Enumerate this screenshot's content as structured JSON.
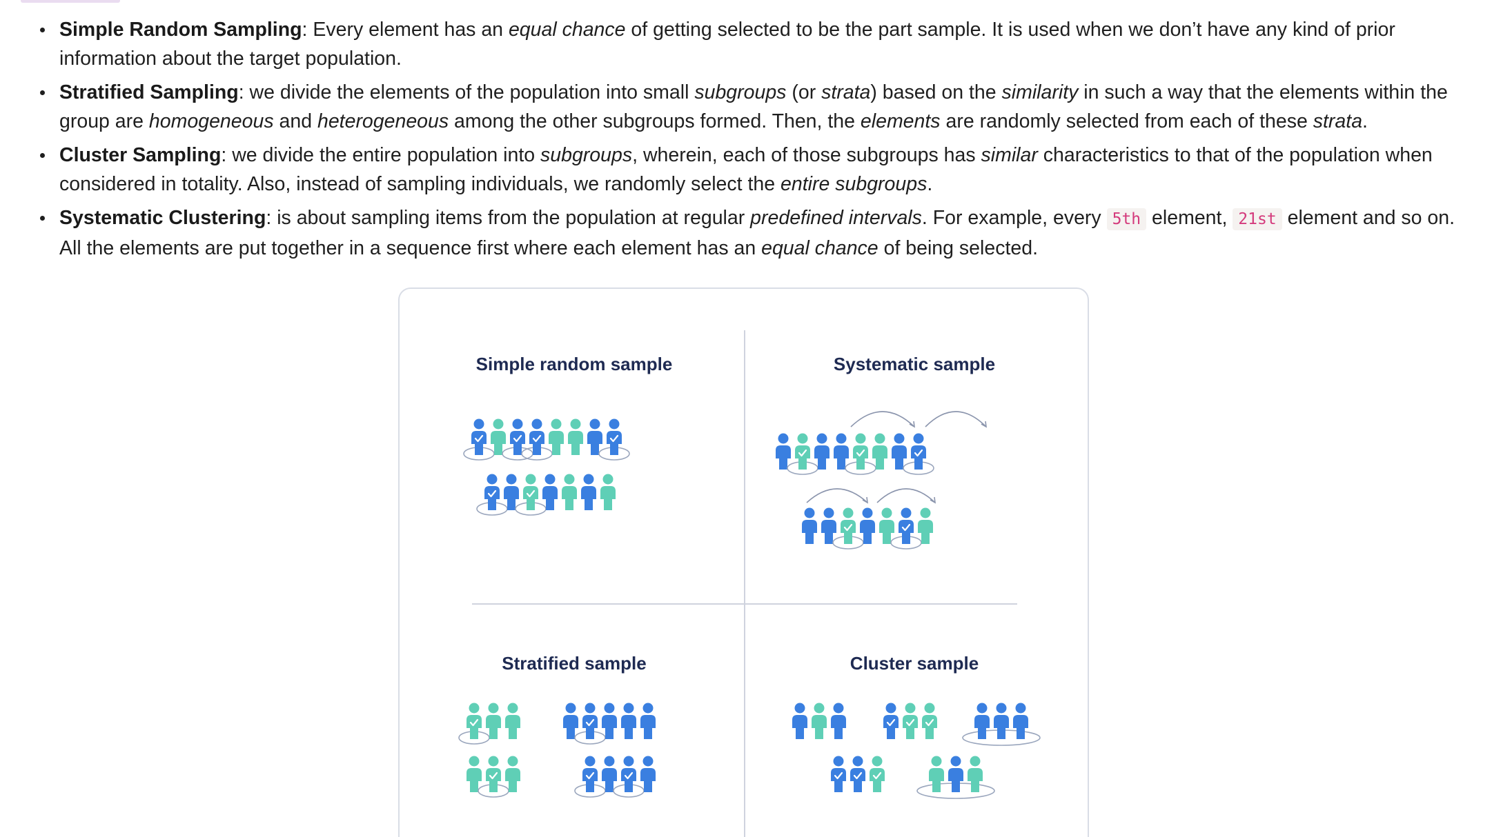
{
  "bullets": [
    {
      "term": "Simple Random Sampling",
      "segments": [
        {
          "t": ": Every element has an "
        },
        {
          "t": "equal chance",
          "i": true
        },
        {
          "t": " of getting selected to be the part sample. It is used when we don’t have any kind of prior information about the target population."
        }
      ]
    },
    {
      "term": "Stratified Sampling",
      "segments": [
        {
          "t": ": we divide the elements of the population into small "
        },
        {
          "t": "subgroups",
          "i": true
        },
        {
          "t": " (or "
        },
        {
          "t": "strata",
          "i": true
        },
        {
          "t": ") based on the "
        },
        {
          "t": "similarity",
          "i": true
        },
        {
          "t": " in such a way that the elements within the group are "
        },
        {
          "t": "homogeneous",
          "i": true
        },
        {
          "t": " and "
        },
        {
          "t": "heterogeneous",
          "i": true
        },
        {
          "t": " among the other subgroups formed. Then, the "
        },
        {
          "t": "elements",
          "i": true
        },
        {
          "t": " are randomly selected from each of these "
        },
        {
          "t": "strata",
          "i": true
        },
        {
          "t": "."
        }
      ]
    },
    {
      "term": "Cluster Sampling",
      "segments": [
        {
          "t": ": we divide the entire population into "
        },
        {
          "t": "subgroups",
          "i": true
        },
        {
          "t": ", wherein, each of those subgroups has "
        },
        {
          "t": "similar",
          "i": true
        },
        {
          "t": " characteristics to that of the population when considered in totality. Also, instead of sampling individuals, we randomly select the "
        },
        {
          "t": "entire subgroups",
          "i": true
        },
        {
          "t": "."
        }
      ]
    },
    {
      "term": "Systematic Clustering",
      "segments": [
        {
          "t": ": is about sampling items from the population at regular "
        },
        {
          "t": "predefined intervals",
          "i": true
        },
        {
          "t": ". For example, every "
        },
        {
          "t": "5th",
          "code": true
        },
        {
          "t": " element, "
        },
        {
          "t": "21st",
          "code": true
        },
        {
          "t": " element and so on. All the elements are put together in a sequence first where each element has an "
        },
        {
          "t": "equal chance",
          "i": true
        },
        {
          "t": " of being selected."
        }
      ]
    }
  ],
  "figure": {
    "panels": {
      "simple_random": {
        "title": "Simple random sample",
        "rows": [
          [
            "B1",
            "T",
            "B1",
            "B1",
            "T",
            "T",
            "B",
            "B1"
          ],
          [
            "B1",
            "B",
            "T1",
            "B",
            "T",
            "B",
            "T"
          ]
        ]
      },
      "systematic": {
        "title": "Systematic sample",
        "rows": [
          [
            "B",
            "T1",
            "B",
            "B",
            "T1",
            "T",
            "B",
            "B1"
          ],
          [
            "B",
            "B",
            "T1",
            "B",
            "T",
            "B1",
            "T"
          ]
        ]
      },
      "stratified": {
        "title": "Stratified sample",
        "groups": [
          [
            "T1",
            "T",
            "T"
          ],
          [
            "B",
            "B1",
            "B",
            "B",
            "B"
          ],
          [
            "T",
            "T1",
            "T"
          ],
          [
            "B1",
            "B",
            "B1",
            "B"
          ]
        ]
      },
      "cluster": {
        "title": "Cluster sample",
        "groups": [
          [
            "B",
            "T",
            "B"
          ],
          [
            "B1",
            "T1",
            "T1"
          ],
          [
            "B",
            "B",
            "B"
          ],
          [
            "B1",
            "B1",
            "T1"
          ],
          [
            "T",
            "B",
            "T"
          ]
        ],
        "selected_clusters": [
          2,
          4
        ]
      }
    },
    "colors": {
      "blue": "#3a7fe0",
      "teal": "#5fcfb6",
      "title": "#1e2a52",
      "divider": "#cfd3de",
      "ellipse": "#9aa6bd",
      "arc": "#8b95ad",
      "check": "#ffffff"
    }
  }
}
